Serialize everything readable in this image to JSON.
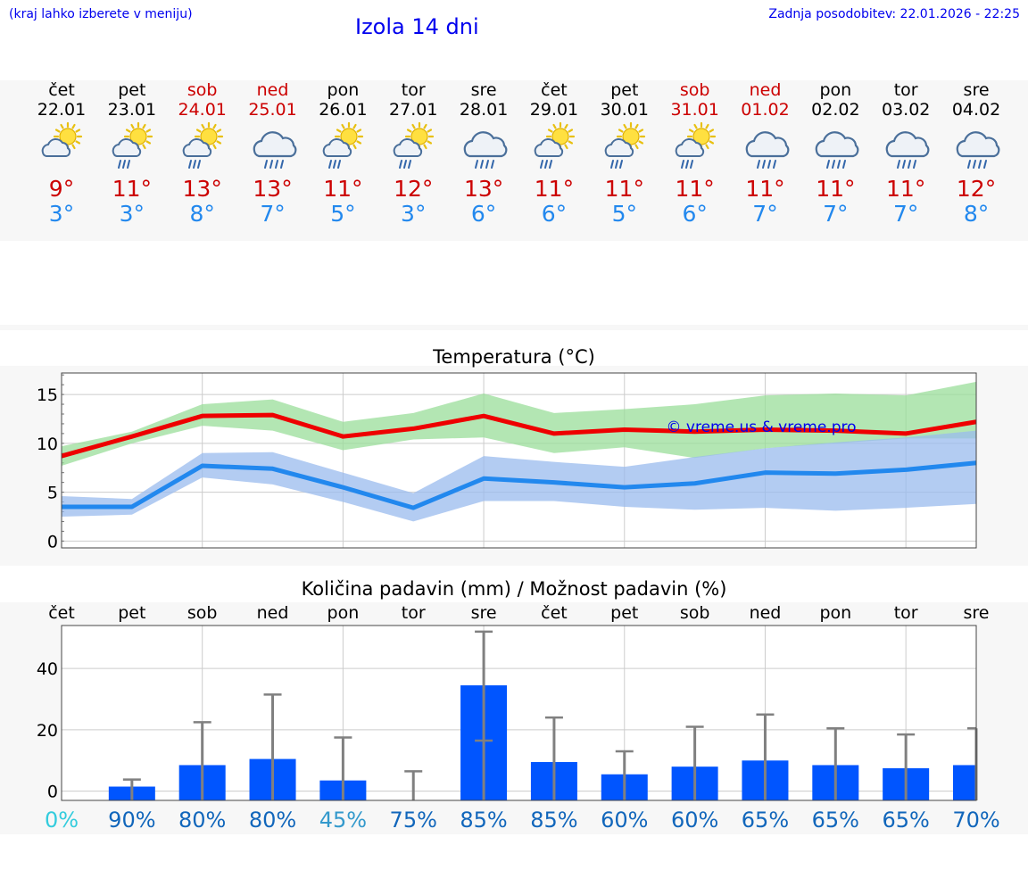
{
  "header": {
    "note": "(kraj lahko izberete v meniju)",
    "title": "Izola 14 dni",
    "update": "Zadnja posodobitev: 22.01.2026 - 22:25"
  },
  "days": [
    {
      "name": "čet",
      "date": "22.01",
      "weekend": false,
      "icon": "partly-cloudy-icon",
      "tmax": "9°",
      "tmin": "3°"
    },
    {
      "name": "pet",
      "date": "23.01",
      "weekend": false,
      "icon": "partly-cloudy-rain-icon",
      "tmax": "11°",
      "tmin": "3°"
    },
    {
      "name": "sob",
      "date": "24.01",
      "weekend": true,
      "icon": "partly-cloudy-rain-icon",
      "tmax": "13°",
      "tmin": "8°"
    },
    {
      "name": "ned",
      "date": "25.01",
      "weekend": true,
      "icon": "cloudy-rain-icon",
      "tmax": "13°",
      "tmin": "7°"
    },
    {
      "name": "pon",
      "date": "26.01",
      "weekend": false,
      "icon": "partly-cloudy-rain-icon",
      "tmax": "11°",
      "tmin": "5°"
    },
    {
      "name": "tor",
      "date": "27.01",
      "weekend": false,
      "icon": "partly-cloudy-rain-icon",
      "tmax": "12°",
      "tmin": "3°"
    },
    {
      "name": "sre",
      "date": "28.01",
      "weekend": false,
      "icon": "cloudy-rain-icon",
      "tmax": "13°",
      "tmin": "6°"
    },
    {
      "name": "čet",
      "date": "29.01",
      "weekend": false,
      "icon": "partly-cloudy-rain-icon",
      "tmax": "11°",
      "tmin": "6°"
    },
    {
      "name": "pet",
      "date": "30.01",
      "weekend": false,
      "icon": "partly-cloudy-rain-icon",
      "tmax": "11°",
      "tmin": "5°"
    },
    {
      "name": "sob",
      "date": "31.01",
      "weekend": true,
      "icon": "partly-cloudy-rain-icon",
      "tmax": "11°",
      "tmin": "6°"
    },
    {
      "name": "ned",
      "date": "01.02",
      "weekend": true,
      "icon": "cloudy-rain-icon",
      "tmax": "11°",
      "tmin": "7°"
    },
    {
      "name": "pon",
      "date": "02.02",
      "weekend": false,
      "icon": "cloudy-rain-icon",
      "tmax": "11°",
      "tmin": "7°"
    },
    {
      "name": "tor",
      "date": "03.02",
      "weekend": false,
      "icon": "cloudy-rain-icon",
      "tmax": "11°",
      "tmin": "7°"
    },
    {
      "name": "sre",
      "date": "04.02",
      "weekend": false,
      "icon": "cloudy-rain-icon",
      "tmax": "12°",
      "tmin": "8°"
    }
  ],
  "colors": {
    "max_line": "#ee0000",
    "max_band": "#99dd99",
    "min_line": "#2288ee",
    "min_band": "#99bbee",
    "bar": "#0055ff",
    "errbar": "#808080",
    "watermark": "#0000ee",
    "weekend": "#cc0000"
  },
  "chart_data": [
    {
      "type": "line",
      "title": "Temperatura (°C)",
      "watermark": "© vreme.us & vreme.pro",
      "x": [
        0,
        1,
        2,
        3,
        4,
        5,
        6,
        7,
        8,
        9,
        10,
        11,
        12,
        13
      ],
      "ylim": [
        -0.7,
        17.2
      ],
      "yticks": [
        0,
        5,
        10,
        15
      ],
      "grid": true,
      "series": [
        {
          "name": "max",
          "values": [
            8.7,
            10.7,
            12.8,
            12.9,
            10.7,
            11.5,
            12.8,
            11.0,
            11.4,
            11.2,
            11.4,
            11.3,
            11.0,
            12.2
          ],
          "band_low": [
            7.7,
            10.0,
            11.8,
            11.3,
            9.3,
            10.4,
            10.6,
            9.0,
            9.6,
            8.5,
            9.5,
            10.0,
            10.5,
            10.5
          ],
          "band_high": [
            9.7,
            11.2,
            14.0,
            14.5,
            12.2,
            13.1,
            15.1,
            13.1,
            13.5,
            14.0,
            14.9,
            15.1,
            14.9,
            16.3
          ]
        },
        {
          "name": "min",
          "values": [
            3.5,
            3.5,
            7.7,
            7.4,
            5.5,
            3.4,
            6.4,
            6.0,
            5.5,
            5.9,
            7.0,
            6.9,
            7.3,
            8.0
          ],
          "band_low": [
            2.5,
            2.7,
            6.5,
            5.8,
            4.0,
            2.0,
            4.1,
            4.1,
            3.5,
            3.2,
            3.4,
            3.1,
            3.4,
            3.8
          ],
          "band_high": [
            4.6,
            4.3,
            9.0,
            9.1,
            7.0,
            4.9,
            8.7,
            8.1,
            7.6,
            8.6,
            9.5,
            10.1,
            10.6,
            11.3
          ]
        }
      ]
    },
    {
      "type": "bar",
      "title": "Količina padavin (mm) / Možnost padavin (%)",
      "categories": [
        "čet",
        "pet",
        "sob",
        "ned",
        "pon",
        "tor",
        "sre",
        "čet",
        "pet",
        "sob",
        "ned",
        "pon",
        "tor",
        "sre"
      ],
      "values": [
        0,
        1.5,
        8.5,
        10.5,
        3.5,
        0,
        34.5,
        9.5,
        5.5,
        8,
        10,
        8.5,
        7.5,
        8.5
      ],
      "error_high": [
        0,
        3.8,
        22.5,
        31.5,
        17.5,
        6.5,
        52,
        24,
        13,
        21,
        25,
        20.5,
        18.5,
        20.5
      ],
      "error_low": [
        0,
        0,
        0,
        0,
        0,
        0,
        16.5,
        0,
        0,
        0,
        0,
        0,
        0,
        0
      ],
      "probability": [
        "0%",
        "90%",
        "80%",
        "80%",
        "45%",
        "75%",
        "85%",
        "85%",
        "60%",
        "60%",
        "65%",
        "65%",
        "65%",
        "70%"
      ],
      "probability_colors": [
        "#33ccdd",
        "#1166bb",
        "#1166bb",
        "#1166bb",
        "#3399cc",
        "#1166bb",
        "#1166bb",
        "#1166bb",
        "#1166bb",
        "#1166bb",
        "#1166bb",
        "#1166bb",
        "#1166bb",
        "#1166bb"
      ],
      "ylim": [
        -3,
        54
      ],
      "yticks": [
        0,
        20,
        40
      ],
      "grid": true
    }
  ]
}
